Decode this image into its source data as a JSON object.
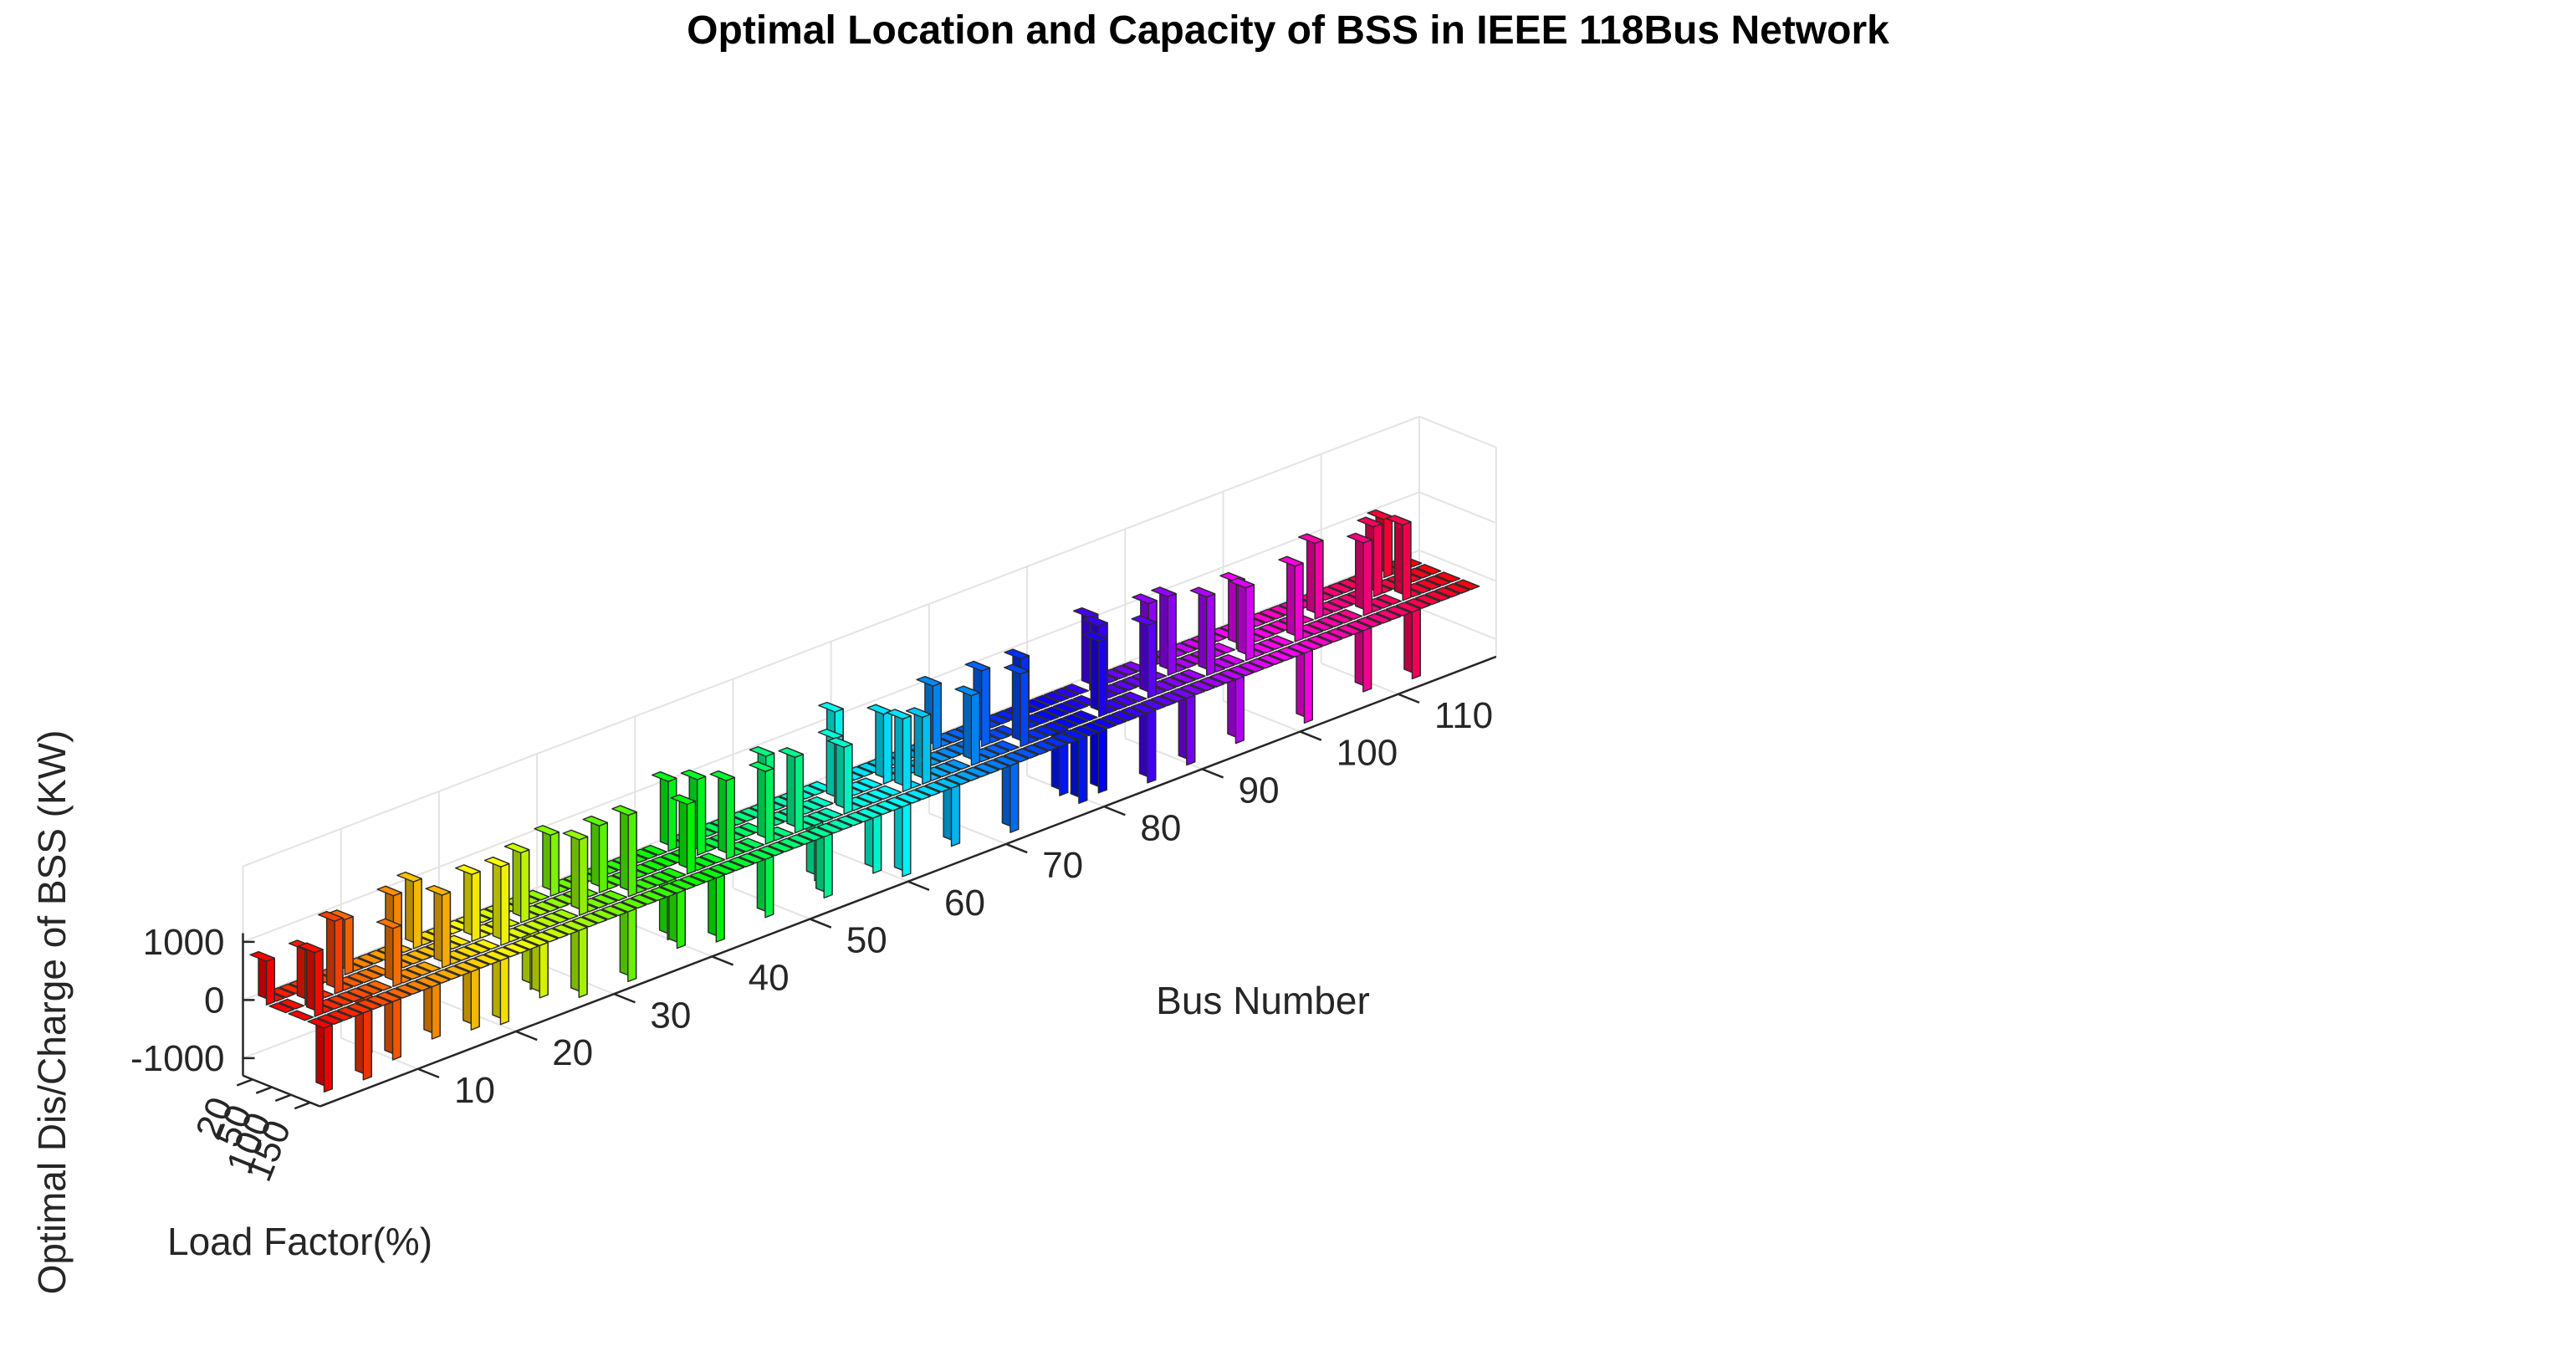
{
  "chart_data": {
    "type": "bar3",
    "title": "Optimal Location and Capacity of BSS in IEEE 118Bus Network",
    "xlabel": "Bus Number",
    "ylabel": "Load Factor(%)",
    "zlabel": "Optimal Dis/Charge of BSS (KW)",
    "x_ticks": [
      "10",
      "20",
      "30",
      "40",
      "50",
      "60",
      "70",
      "80",
      "90",
      "100",
      "110"
    ],
    "y_ticks": [
      "20",
      "50",
      "100",
      "150"
    ],
    "z_ticks": [
      "1000",
      "0",
      "-1000"
    ],
    "x_range": [
      1,
      118
    ],
    "load_factors": [
      20,
      50,
      100,
      150
    ],
    "z_range": [
      -1300,
      2300
    ],
    "grid": true,
    "colormap": "hsv",
    "values_note": "values in KW, one row per load factor, estimated",
    "series": [
      {
        "load_factor": 20,
        "values": [
          750,
          0,
          0,
          0,
          0,
          0,
          0,
          0,
          950,
          0,
          0,
          0,
          0,
          0,
          0,
          1150,
          0,
          0,
          0,
          0,
          0,
          0,
          0,
          0,
          0,
          0,
          0,
          0,
          0,
          1050,
          0,
          0,
          0,
          0,
          0,
          0,
          0,
          0,
          0,
          0,
          0,
          1200,
          0,
          0,
          0,
          0,
          0,
          0,
          0,
          0,
          0,
          0,
          0,
          0,
          0,
          0,
          0,
          0,
          1300,
          0,
          0,
          0,
          0,
          0,
          0,
          0,
          0,
          0,
          1100,
          0,
          0,
          0,
          0,
          0,
          0,
          0,
          0,
          0,
          0,
          0,
          0,
          0,
          0,
          0,
          1250,
          0,
          0,
          0,
          0,
          0,
          1100,
          0,
          0,
          0,
          0,
          0,
          0,
          0,
          0,
          0,
          0,
          0,
          0,
          0,
          0,
          0,
          0,
          0,
          0,
          0,
          0,
          0,
          0,
          0,
          1000,
          0,
          0,
          0
        ]
      },
      {
        "load_factor": 50,
        "values": [
          0,
          0,
          950,
          0,
          0,
          1250,
          0,
          0,
          0,
          0,
          0,
          1300,
          0,
          0,
          0,
          0,
          0,
          0,
          0,
          1150,
          0,
          0,
          0,
          0,
          1200,
          0,
          0,
          0,
          0,
          0,
          0,
          0,
          1150,
          0,
          0,
          0,
          0,
          0,
          0,
          0,
          0,
          0,
          1300,
          0,
          0,
          0,
          0,
          0,
          0,
          1250,
          0,
          0,
          0,
          0,
          0,
          0,
          1100,
          0,
          0,
          0,
          0,
          1200,
          0,
          0,
          0,
          0,
          0,
          0,
          0,
          0,
          0,
          1300,
          0,
          0,
          0,
          1250,
          0,
          0,
          0,
          0,
          0,
          0,
          0,
          1300,
          0,
          0,
          0,
          0,
          0,
          0,
          1350,
          0,
          0,
          0,
          0,
          0,
          0,
          1150,
          0,
          0,
          0,
          0,
          0,
          0,
          0,
          1300,
          0,
          0,
          0,
          0,
          0,
          1200,
          0,
          0,
          0,
          0,
          0,
          0
        ]
      },
      {
        "load_factor": 100,
        "values": [
          0,
          1100,
          0,
          0,
          0,
          0,
          -1000,
          0,
          0,
          1000,
          0,
          0,
          0,
          0,
          1250,
          0,
          0,
          0,
          0,
          0,
          1350,
          0,
          0,
          -950,
          0,
          0,
          0,
          0,
          1300,
          0,
          0,
          0,
          0,
          1400,
          0,
          0,
          0,
          -1000,
          0,
          1200,
          0,
          0,
          0,
          1350,
          0,
          0,
          0,
          1250,
          0,
          0,
          1300,
          0,
          -950,
          0,
          0,
          1150,
          0,
          0,
          0,
          0,
          0,
          1250,
          0,
          1150,
          0,
          0,
          0,
          0,
          1200,
          0,
          0,
          0,
          0,
          1250,
          0,
          0,
          0,
          -1100,
          0,
          0,
          0,
          1300,
          0,
          0,
          0,
          0,
          1250,
          0,
          0,
          0,
          0,
          0,
          1350,
          0,
          0,
          0,
          1250,
          0,
          0,
          0,
          0,
          1300,
          0,
          0,
          0,
          0,
          0,
          0,
          1250,
          0,
          0,
          0,
          1300,
          0,
          0,
          0,
          0,
          0
        ]
      },
      {
        "load_factor": 150,
        "values": [
          -1100,
          0,
          0,
          0,
          -1150,
          0,
          0,
          -1000,
          0,
          0,
          0,
          -900,
          0,
          0,
          0,
          -1000,
          0,
          0,
          -1100,
          0,
          0,
          0,
          -900,
          0,
          0,
          0,
          -1150,
          0,
          0,
          0,
          0,
          -1200,
          0,
          0,
          0,
          0,
          -950,
          0,
          0,
          0,
          -1100,
          0,
          0,
          0,
          0,
          -1000,
          0,
          0,
          0,
          0,
          0,
          -1050,
          0,
          0,
          0,
          0,
          -950,
          0,
          0,
          -1200,
          0,
          0,
          0,
          0,
          -1000,
          0,
          0,
          0,
          0,
          0,
          -1150,
          0,
          0,
          0,
          0,
          0,
          0,
          -1100,
          0,
          -1050,
          0,
          0,
          0,
          0,
          -1200,
          0,
          0,
          0,
          -1150,
          0,
          0,
          0,
          0,
          -1100,
          0,
          0,
          0,
          0,
          0,
          0,
          -1200,
          0,
          0,
          0,
          0,
          0,
          -1050,
          0,
          0,
          0,
          0,
          -1150,
          0,
          0,
          0,
          0,
          0,
          0,
          0,
          -1000
        ]
      }
    ]
  }
}
